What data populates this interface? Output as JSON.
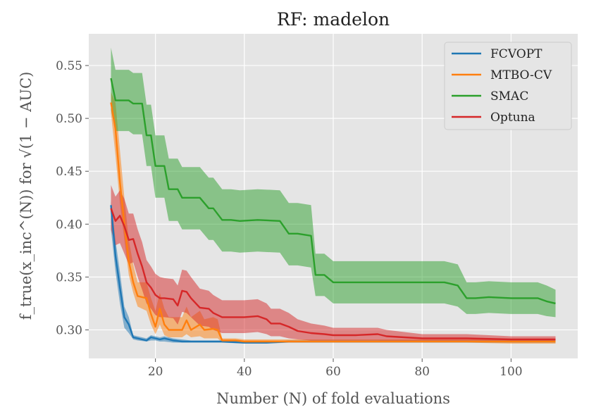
{
  "chart_data": {
    "type": "line",
    "title": "RF: madelon",
    "xlabel": "Number (N) of fold evaluations",
    "ylabel": "f_true(x_inc^(N)) for √(1 − AUC)",
    "xlim": [
      5,
      115
    ],
    "ylim": [
      0.273,
      0.58
    ],
    "xticks": [
      20,
      40,
      60,
      80,
      100
    ],
    "yticks": [
      0.3,
      0.35,
      0.4,
      0.45,
      0.5,
      0.55
    ],
    "xtick_labels": [
      "20",
      "40",
      "60",
      "80",
      "100"
    ],
    "ytick_labels": [
      "0.30",
      "0.35",
      "0.40",
      "0.45",
      "0.50",
      "0.55"
    ],
    "grid": true,
    "legend_position": "top-right",
    "series": [
      {
        "name": "FCVOPT",
        "color": "#1f77b4",
        "x": [
          10,
          11,
          12,
          13,
          14,
          15,
          16,
          18,
          19,
          20,
          21,
          22,
          24,
          26,
          28,
          30,
          35,
          40,
          45,
          50,
          60,
          70,
          80,
          90,
          100,
          110
        ],
        "y": [
          0.418,
          0.37,
          0.34,
          0.312,
          0.305,
          0.293,
          0.292,
          0.29,
          0.293,
          0.292,
          0.291,
          0.292,
          0.29,
          0.289,
          0.289,
          0.289,
          0.289,
          0.288,
          0.288,
          0.289,
          0.289,
          0.289,
          0.289,
          0.289,
          0.289,
          0.289
        ],
        "lower": [
          0.395,
          0.355,
          0.325,
          0.302,
          0.297,
          0.291,
          0.29,
          0.289,
          0.29,
          0.29,
          0.289,
          0.289,
          0.288,
          0.288,
          0.288,
          0.288,
          0.288,
          0.287,
          0.287,
          0.288,
          0.288,
          0.288,
          0.288,
          0.288,
          0.288,
          0.288
        ],
        "upper": [
          0.422,
          0.385,
          0.355,
          0.322,
          0.312,
          0.295,
          0.294,
          0.292,
          0.295,
          0.294,
          0.293,
          0.294,
          0.292,
          0.291,
          0.29,
          0.29,
          0.29,
          0.289,
          0.289,
          0.29,
          0.29,
          0.29,
          0.29,
          0.29,
          0.29,
          0.29
        ]
      },
      {
        "name": "MTBO-CV",
        "color": "#ff7f0e",
        "x": [
          10,
          11,
          12,
          13,
          14,
          15,
          16,
          18,
          19,
          20,
          21,
          22,
          23,
          26,
          27,
          28,
          30,
          31,
          33,
          34,
          35,
          37,
          38,
          40,
          45,
          50,
          60,
          70,
          80,
          90,
          100,
          110
        ],
        "y": [
          0.515,
          0.49,
          0.44,
          0.4,
          0.365,
          0.345,
          0.332,
          0.33,
          0.315,
          0.303,
          0.32,
          0.305,
          0.3,
          0.3,
          0.309,
          0.3,
          0.305,
          0.3,
          0.301,
          0.3,
          0.29,
          0.29,
          0.29,
          0.289,
          0.289,
          0.289,
          0.289,
          0.289,
          0.289,
          0.289,
          0.289,
          0.289
        ],
        "lower": [
          0.505,
          0.465,
          0.42,
          0.385,
          0.352,
          0.335,
          0.322,
          0.318,
          0.305,
          0.296,
          0.305,
          0.295,
          0.293,
          0.293,
          0.296,
          0.293,
          0.294,
          0.292,
          0.292,
          0.292,
          0.288,
          0.288,
          0.288,
          0.288,
          0.288,
          0.288,
          0.288,
          0.288,
          0.288,
          0.288,
          0.287,
          0.287
        ],
        "upper": [
          0.525,
          0.515,
          0.47,
          0.425,
          0.385,
          0.362,
          0.345,
          0.345,
          0.33,
          0.318,
          0.335,
          0.32,
          0.312,
          0.312,
          0.322,
          0.312,
          0.318,
          0.31,
          0.312,
          0.31,
          0.292,
          0.292,
          0.292,
          0.291,
          0.291,
          0.291,
          0.291,
          0.291,
          0.291,
          0.291,
          0.291,
          0.291
        ]
      },
      {
        "name": "SMAC",
        "color": "#2ca02c",
        "x": [
          10,
          11,
          14,
          15,
          17,
          18,
          19,
          20,
          21,
          22,
          23,
          25,
          26,
          29,
          30,
          32,
          33,
          35,
          37,
          39,
          43,
          48,
          50,
          52,
          55,
          56,
          58,
          60,
          67,
          70,
          80,
          85,
          88,
          90,
          92,
          95,
          100,
          106,
          108,
          110
        ],
        "y": [
          0.538,
          0.517,
          0.517,
          0.514,
          0.514,
          0.484,
          0.484,
          0.455,
          0.455,
          0.455,
          0.433,
          0.433,
          0.425,
          0.425,
          0.425,
          0.415,
          0.415,
          0.404,
          0.404,
          0.403,
          0.404,
          0.403,
          0.391,
          0.391,
          0.389,
          0.352,
          0.352,
          0.345,
          0.345,
          0.345,
          0.345,
          0.345,
          0.342,
          0.33,
          0.33,
          0.331,
          0.33,
          0.33,
          0.327,
          0.325
        ],
        "lower": [
          0.508,
          0.488,
          0.488,
          0.485,
          0.485,
          0.455,
          0.455,
          0.425,
          0.425,
          0.425,
          0.403,
          0.403,
          0.395,
          0.395,
          0.395,
          0.385,
          0.385,
          0.374,
          0.374,
          0.373,
          0.374,
          0.373,
          0.361,
          0.361,
          0.359,
          0.332,
          0.332,
          0.325,
          0.325,
          0.325,
          0.325,
          0.325,
          0.322,
          0.315,
          0.315,
          0.316,
          0.315,
          0.315,
          0.313,
          0.312
        ],
        "upper": [
          0.567,
          0.546,
          0.546,
          0.543,
          0.543,
          0.513,
          0.513,
          0.484,
          0.484,
          0.484,
          0.462,
          0.462,
          0.454,
          0.454,
          0.454,
          0.444,
          0.444,
          0.433,
          0.433,
          0.432,
          0.433,
          0.432,
          0.42,
          0.42,
          0.418,
          0.372,
          0.372,
          0.365,
          0.365,
          0.365,
          0.365,
          0.365,
          0.362,
          0.345,
          0.345,
          0.346,
          0.345,
          0.345,
          0.342,
          0.338
        ]
      },
      {
        "name": "Optuna",
        "color": "#d62728",
        "x": [
          10,
          11,
          12,
          13,
          14,
          15,
          16,
          17,
          18,
          19,
          20,
          21,
          22,
          24,
          25,
          26,
          27,
          28,
          30,
          32,
          33,
          35,
          40,
          43,
          45,
          46,
          48,
          50,
          52,
          55,
          58,
          60,
          65,
          70,
          72,
          80,
          90,
          100,
          110
        ],
        "y": [
          0.415,
          0.403,
          0.408,
          0.398,
          0.385,
          0.386,
          0.372,
          0.36,
          0.345,
          0.34,
          0.333,
          0.33,
          0.33,
          0.329,
          0.323,
          0.337,
          0.336,
          0.33,
          0.321,
          0.32,
          0.316,
          0.312,
          0.312,
          0.313,
          0.31,
          0.306,
          0.306,
          0.303,
          0.299,
          0.297,
          0.296,
          0.295,
          0.295,
          0.296,
          0.294,
          0.292,
          0.292,
          0.291,
          0.291
        ],
        "lower": [
          0.395,
          0.38,
          0.382,
          0.372,
          0.362,
          0.364,
          0.35,
          0.338,
          0.325,
          0.32,
          0.314,
          0.312,
          0.312,
          0.311,
          0.305,
          0.317,
          0.316,
          0.312,
          0.304,
          0.303,
          0.3,
          0.297,
          0.297,
          0.298,
          0.296,
          0.294,
          0.294,
          0.292,
          0.291,
          0.29,
          0.29,
          0.29,
          0.29,
          0.29,
          0.289,
          0.289,
          0.289,
          0.289,
          0.289
        ],
        "upper": [
          0.437,
          0.426,
          0.432,
          0.424,
          0.41,
          0.41,
          0.395,
          0.383,
          0.366,
          0.36,
          0.353,
          0.35,
          0.349,
          0.348,
          0.342,
          0.357,
          0.356,
          0.35,
          0.339,
          0.337,
          0.333,
          0.328,
          0.328,
          0.329,
          0.325,
          0.32,
          0.32,
          0.316,
          0.31,
          0.306,
          0.304,
          0.302,
          0.302,
          0.302,
          0.3,
          0.296,
          0.296,
          0.294,
          0.294
        ]
      }
    ]
  }
}
